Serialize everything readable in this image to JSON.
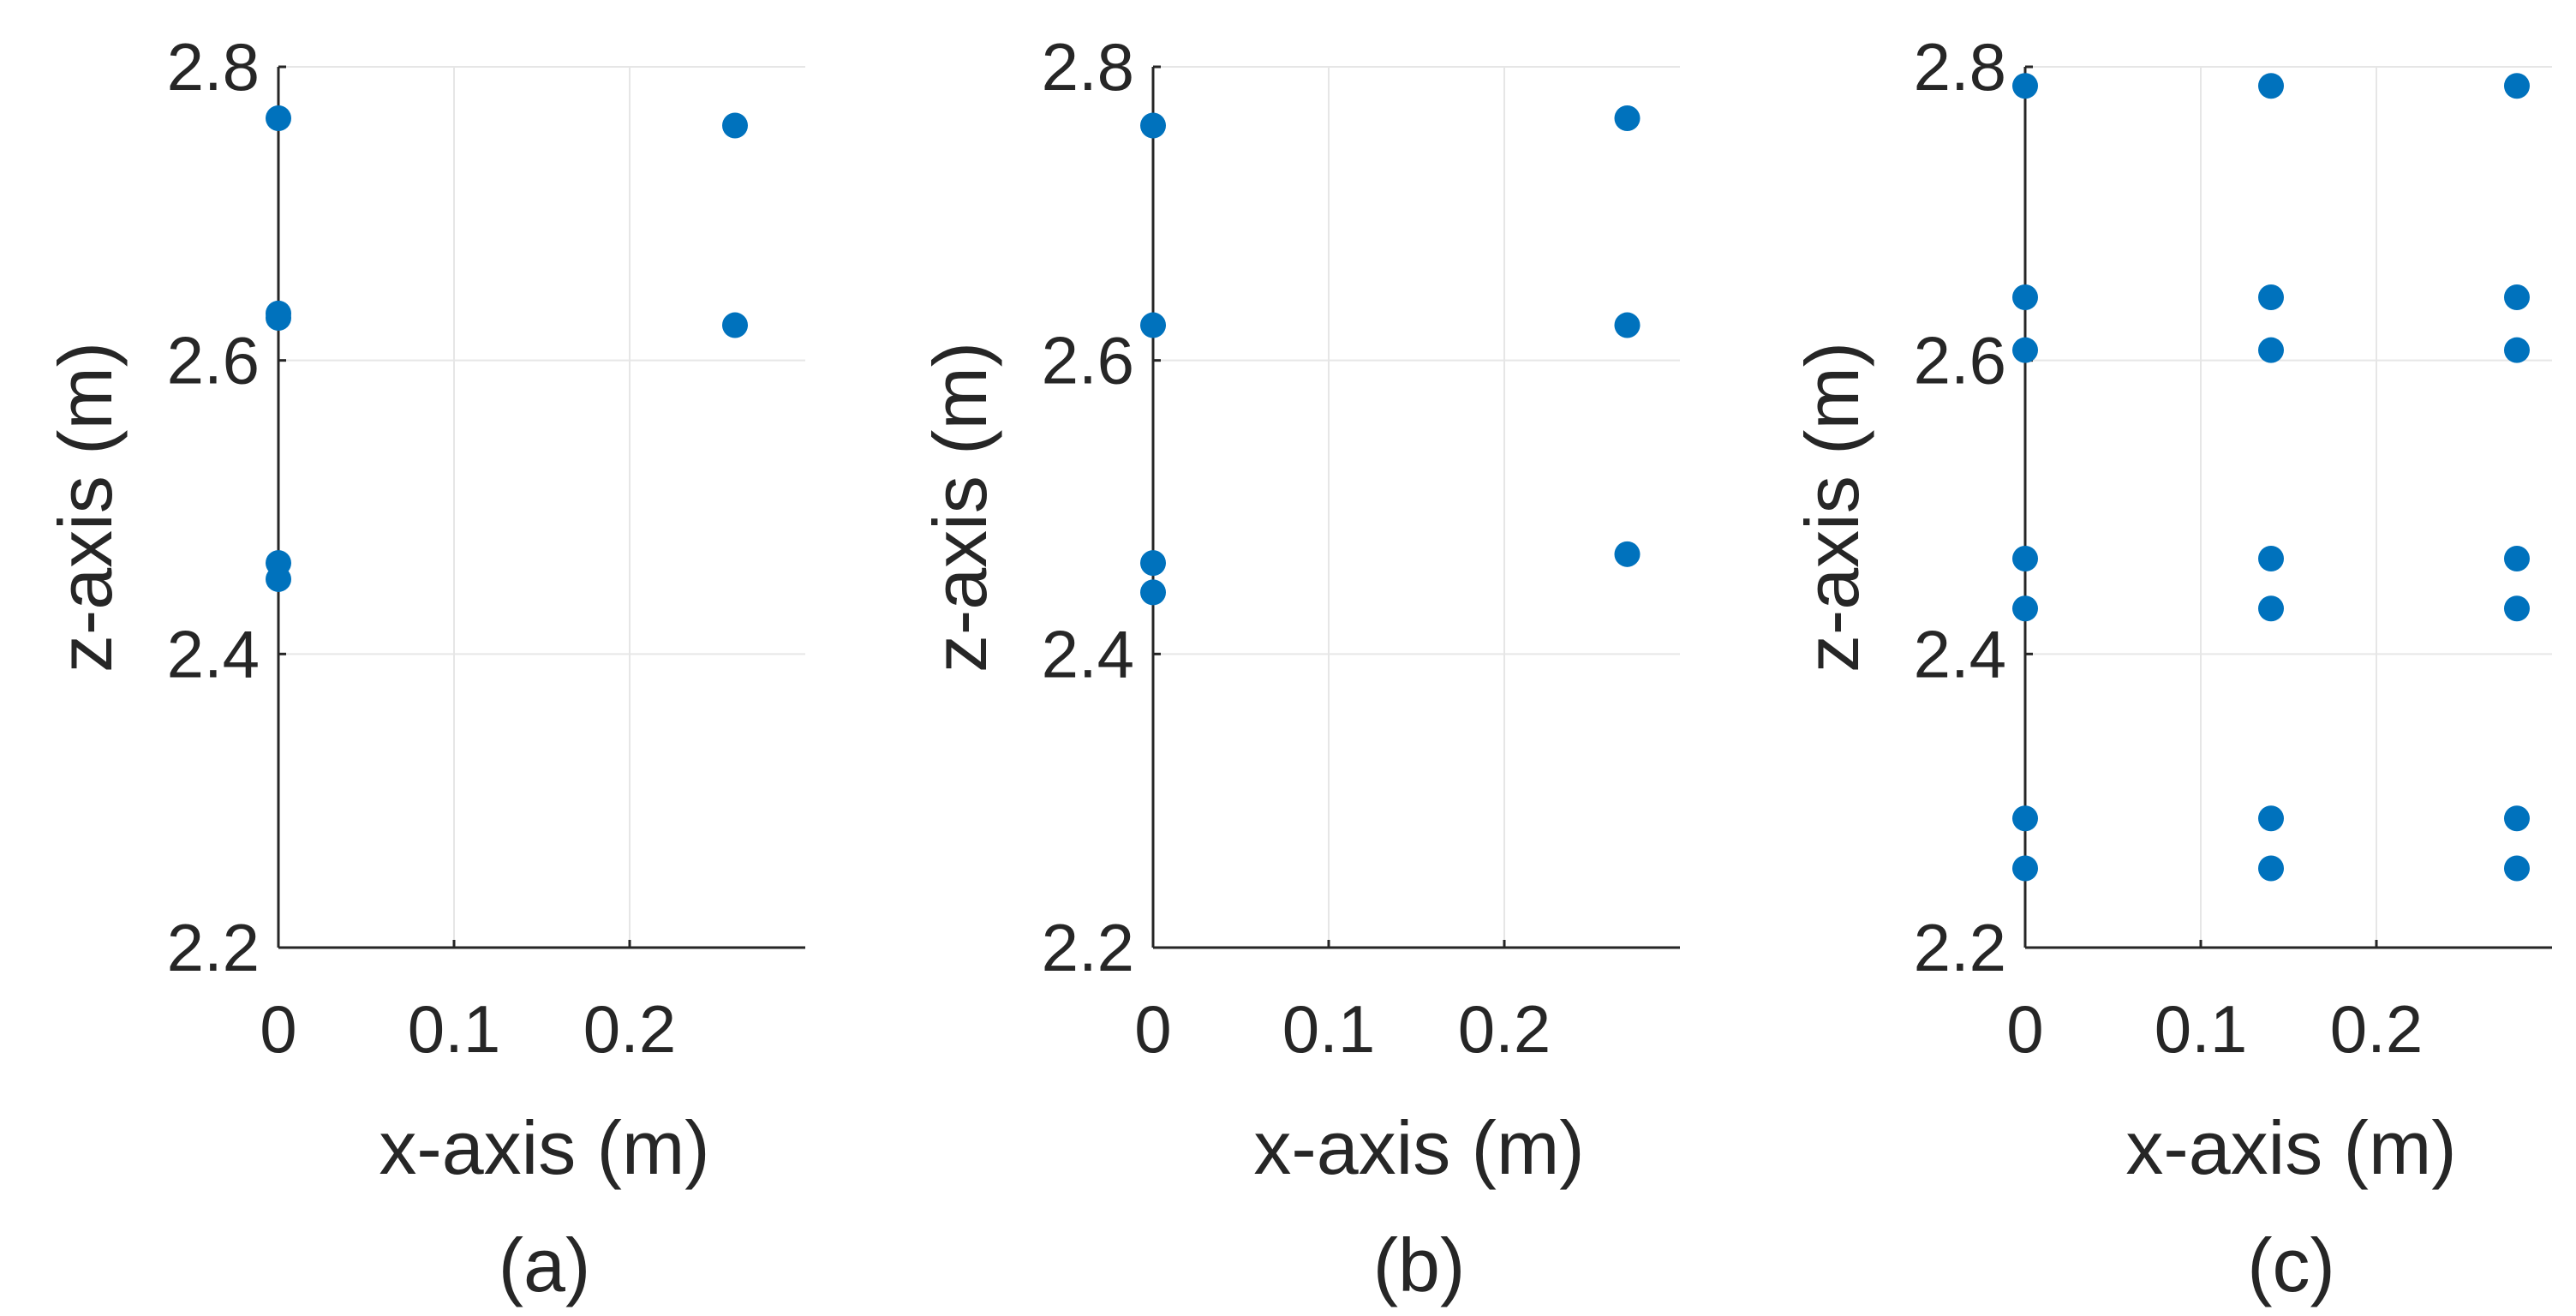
{
  "colors": {
    "marker": "#0072BD",
    "axis": "#262626",
    "grid": "#e6e6e6"
  },
  "chart_data": [
    {
      "type": "scatter",
      "caption": "(a)",
      "xlabel": "x-axis (m)",
      "ylabel": "z-axis (m)",
      "xlim": [
        0,
        0.3
      ],
      "ylim": [
        2.2,
        2.8
      ],
      "xticks": [
        0,
        0.1,
        0.2
      ],
      "xtick_labels": [
        "0",
        "0.1",
        "0.2"
      ],
      "yticks": [
        2.2,
        2.4,
        2.6,
        2.8
      ],
      "ytick_labels": [
        "2.2",
        "2.4",
        "2.6",
        "2.8"
      ],
      "grid": true,
      "points": [
        {
          "x": 0,
          "y": 2.765
        },
        {
          "x": 0,
          "y": 2.632
        },
        {
          "x": 0,
          "y": 2.629
        },
        {
          "x": 0,
          "y": 2.462
        },
        {
          "x": 0,
          "y": 2.451
        },
        {
          "x": 0.26,
          "y": 2.76
        },
        {
          "x": 0.26,
          "y": 2.624
        }
      ]
    },
    {
      "type": "scatter",
      "caption": "(b)",
      "xlabel": "x-axis (m)",
      "ylabel": "z-axis (m)",
      "xlim": [
        0,
        0.3
      ],
      "ylim": [
        2.2,
        2.8
      ],
      "xticks": [
        0,
        0.1,
        0.2
      ],
      "xtick_labels": [
        "0",
        "0.1",
        "0.2"
      ],
      "yticks": [
        2.2,
        2.4,
        2.6,
        2.8
      ],
      "ytick_labels": [
        "2.2",
        "2.4",
        "2.6",
        "2.8"
      ],
      "grid": true,
      "points": [
        {
          "x": 0,
          "y": 2.76
        },
        {
          "x": 0,
          "y": 2.624
        },
        {
          "x": 0,
          "y": 2.462
        },
        {
          "x": 0,
          "y": 2.442
        },
        {
          "x": 0.27,
          "y": 2.765
        },
        {
          "x": 0.27,
          "y": 2.624
        },
        {
          "x": 0.27,
          "y": 2.468
        }
      ]
    },
    {
      "type": "scatter",
      "caption": "(c)",
      "xlabel": "x-axis (m)",
      "ylabel": "z-axis (m)",
      "xlim": [
        0,
        0.3
      ],
      "ylim": [
        2.2,
        2.8
      ],
      "xticks": [
        0,
        0.1,
        0.2
      ],
      "xtick_labels": [
        "0",
        "0.1",
        "0.2"
      ],
      "yticks": [
        2.2,
        2.4,
        2.6,
        2.8
      ],
      "ytick_labels": [
        "2.2",
        "2.4",
        "2.6",
        "2.8"
      ],
      "grid": true,
      "points": [
        {
          "x": 0,
          "y": 2.787
        },
        {
          "x": 0.14,
          "y": 2.787
        },
        {
          "x": 0.28,
          "y": 2.787
        },
        {
          "x": 0,
          "y": 2.643
        },
        {
          "x": 0.14,
          "y": 2.643
        },
        {
          "x": 0.28,
          "y": 2.643
        },
        {
          "x": 0,
          "y": 2.607
        },
        {
          "x": 0.14,
          "y": 2.607
        },
        {
          "x": 0.28,
          "y": 2.607
        },
        {
          "x": 0,
          "y": 2.465
        },
        {
          "x": 0.14,
          "y": 2.465
        },
        {
          "x": 0.28,
          "y": 2.465
        },
        {
          "x": 0,
          "y": 2.431
        },
        {
          "x": 0.14,
          "y": 2.431
        },
        {
          "x": 0.28,
          "y": 2.431
        },
        {
          "x": 0,
          "y": 2.288
        },
        {
          "x": 0.14,
          "y": 2.288
        },
        {
          "x": 0.28,
          "y": 2.288
        },
        {
          "x": 0,
          "y": 2.254
        },
        {
          "x": 0.14,
          "y": 2.254
        },
        {
          "x": 0.28,
          "y": 2.254
        }
      ]
    }
  ]
}
